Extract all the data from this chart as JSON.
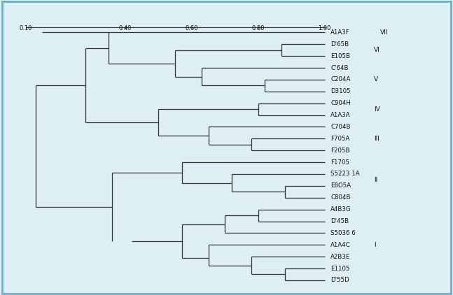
{
  "taxa": [
    "A1A3F",
    "D'65B",
    "E105B",
    "C'64B",
    "C204A",
    "D3105",
    "C904H",
    "A1A3A",
    "C704B",
    "F705A",
    "F205B",
    "F1705",
    "S5223 1A",
    "E8O5A",
    "C804B",
    "A4B3G",
    "D'45B",
    "S5036 6",
    "A1A4C",
    "A2B3E",
    "E1105",
    "D'55D"
  ],
  "scale_ticks": [
    0.1,
    0.4,
    0.6,
    0.8,
    1.0
  ],
  "scale_labels": [
    "0.10",
    "0.40",
    "0.60",
    "0.80",
    "1.00"
  ],
  "bg_color": "#ddeef5",
  "plot_bg": "#ffffff",
  "line_color": "#333333",
  "text_color": "#111111",
  "border_color": "#6ab0cc",
  "group_labels": [
    "VII",
    "VI",
    "V",
    "IV",
    "III",
    "II",
    "I"
  ],
  "group_ranges": [
    [
      0,
      0
    ],
    [
      1,
      2
    ],
    [
      3,
      5
    ],
    [
      6,
      7
    ],
    [
      8,
      10
    ],
    [
      11,
      14
    ],
    [
      15,
      21
    ]
  ],
  "figsize": [
    6.47,
    4.22
  ],
  "dpi": 100
}
